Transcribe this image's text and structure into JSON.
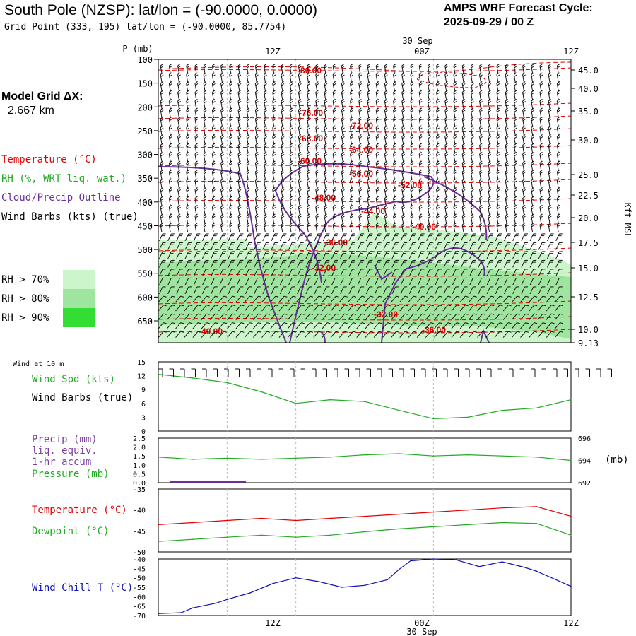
{
  "header": {
    "title": "South Pole (NZSP):  lat/lon = (-90.0000, 0.0000)",
    "grid_point": "Grid Point (333, 195) lat/lon = (-90.0000, 85.7754)",
    "cycle_label": "AMPS WRF Forecast Cycle:",
    "cycle_value": "2025-09-29 / 00  Z"
  },
  "side": {
    "grid_label": "Model Grid ΔX:",
    "grid_value": "2.667 km",
    "temperature": "Temperature (°C)",
    "rh": "RH (%, WRT liq. wat.)",
    "cloud": "Cloud/Precip Outline",
    "wind": "Wind Barbs (kts) (true)",
    "rh_legend": [
      "RH > 70%",
      "RH > 80%",
      "RH > 90%"
    ]
  },
  "colors": {
    "temperature": "#e00000",
    "rh": "#22aa22",
    "cloud": "#6a2f9a",
    "windchill": "#1010b0",
    "rh70": "#ccf5cc",
    "rh80": "#9fe59f",
    "rh90": "#33dd33",
    "barb": "#111111",
    "grid": "#bbbbbb"
  },
  "time_axis": {
    "date_label": "30 Sep",
    "ticks": [
      "12Z",
      "00Z",
      "12Z"
    ]
  },
  "panel_sounding": {
    "ylabel": "P (mb)",
    "right_label": "Kft MSL",
    "pressure_ticks": [
      100,
      150,
      200,
      250,
      300,
      350,
      400,
      450,
      500,
      550,
      600,
      650
    ],
    "kft_ticks": [
      "45.0",
      "40.0",
      "35.0",
      "30.0",
      "25.0",
      "22.5",
      "20.0",
      "17.5",
      "15.0",
      "12.5",
      "10.0",
      "9.13"
    ],
    "temp_labels": [
      "-80.00",
      "-76.00",
      "-72.00",
      "-68.00",
      "-64.00",
      "-60.00",
      "-56.00",
      "-52.00",
      "-48.00",
      "-44.00",
      "-40.00",
      "-36.00",
      "-32.00",
      "-32.00",
      "-36.00",
      "-40.00"
    ]
  },
  "panel_wind": {
    "small_label": "Wind at 10 m",
    "label1": "Wind Spd (kts)",
    "label2": "Wind Barbs (true)",
    "yticks": [
      "15",
      "12",
      "9",
      "6",
      "3",
      "0"
    ]
  },
  "panel_precip": {
    "label1": "Precip (mm)",
    "label2": "liq. equiv.",
    "label3": "1-hr accum",
    "label4": "Pressure (mb)",
    "yticks": [
      "2.5",
      "2.0",
      "1.5",
      "1.0",
      "0.5",
      "0.0"
    ],
    "right_ticks": [
      "696",
      "694",
      "692"
    ],
    "right_unit": "(mb)"
  },
  "panel_temp": {
    "label1": "Temperature (°C)",
    "label2": "Dewpoint (°C)",
    "yticks": [
      "-35",
      "-40",
      "-45",
      "-50"
    ]
  },
  "panel_chill": {
    "label1": "Wind Chill T (°C)",
    "yticks": [
      "-40",
      "-45",
      "-50",
      "-55",
      "-60",
      "-65",
      "-70"
    ]
  },
  "chart_data": [
    {
      "type": "line",
      "title": "Wind Spd (kts) at 10 m",
      "x_hours": [
        0,
        6,
        12,
        18,
        24,
        30,
        36,
        42,
        48,
        54,
        60,
        66,
        72
      ],
      "values": [
        12.3,
        11.5,
        10.5,
        8.5,
        6.0,
        6.8,
        6.4,
        4.5,
        2.7,
        3.0,
        4.5,
        5.0,
        6.8
      ],
      "ylim": [
        0,
        15
      ]
    },
    {
      "type": "line",
      "title": "Pressure (mb)",
      "x_hours": [
        0,
        6,
        12,
        18,
        24,
        30,
        36,
        42,
        48,
        54,
        60,
        66,
        72
      ],
      "values": [
        694.3,
        694.1,
        694.2,
        694.1,
        694.2,
        694.3,
        694.5,
        694.6,
        694.4,
        694.5,
        694.4,
        694.3,
        694.0
      ],
      "ylim": [
        692,
        696
      ]
    },
    {
      "type": "line",
      "title": "Temperature / Dewpoint (°C)",
      "x_hours": [
        0,
        6,
        12,
        18,
        24,
        30,
        36,
        42,
        48,
        54,
        60,
        66,
        72
      ],
      "series": [
        {
          "name": "Temperature",
          "values": [
            -43.5,
            -43.0,
            -42.5,
            -42.0,
            -42.5,
            -42.0,
            -41.5,
            -41.0,
            -40.5,
            -40.0,
            -39.5,
            -39.2,
            -41.5
          ]
        },
        {
          "name": "Dewpoint",
          "values": [
            -47.5,
            -47.0,
            -46.5,
            -46.0,
            -46.5,
            -46.0,
            -45.2,
            -44.5,
            -44.0,
            -43.5,
            -43.0,
            -43.2,
            -46.0
          ]
        }
      ],
      "ylim": [
        -50,
        -35
      ]
    },
    {
      "type": "line",
      "title": "Wind Chill T (°C)",
      "x_hours": [
        0,
        4,
        6,
        10,
        12,
        16,
        20,
        24,
        28,
        32,
        36,
        40,
        42,
        44,
        48,
        52,
        56,
        60,
        64,
        66,
        72
      ],
      "values": [
        -69,
        -68.5,
        -66,
        -63.5,
        -61.5,
        -58,
        -53,
        -50,
        -52,
        -55,
        -54,
        -51,
        -45.5,
        -41,
        -40,
        -40.5,
        -44,
        -41.5,
        -44.5,
        -46.5,
        -54.5
      ],
      "ylim": [
        -70,
        -40
      ]
    }
  ]
}
